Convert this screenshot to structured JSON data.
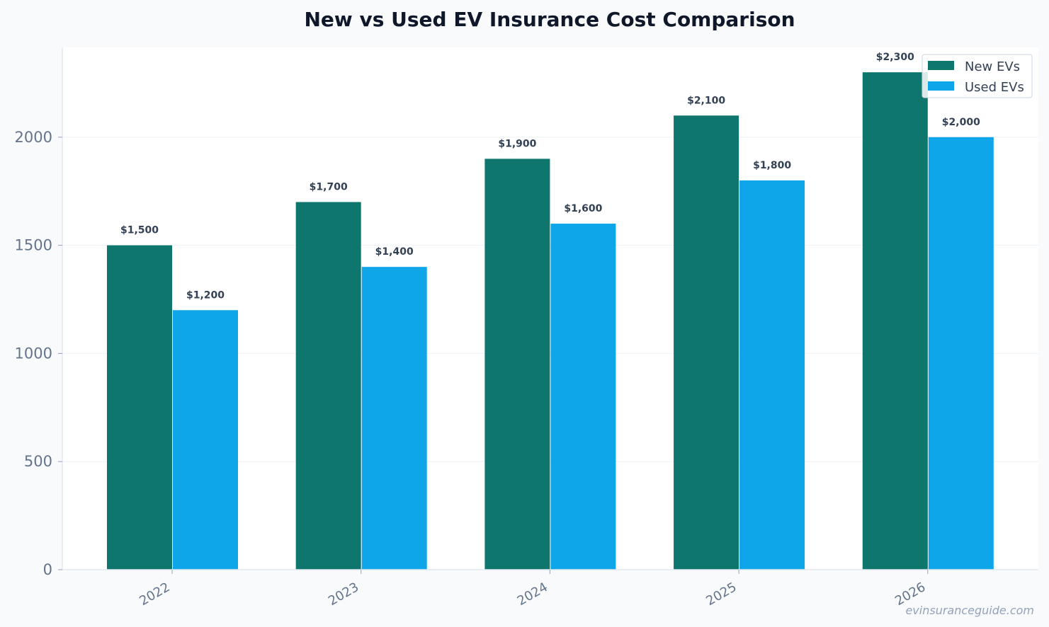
{
  "chart_data": {
    "type": "bar",
    "title": "New vs Used EV Insurance Cost Comparison",
    "xlabel": "",
    "ylabel": "",
    "categories": [
      "2022",
      "2023",
      "2024",
      "2025",
      "2026"
    ],
    "series": [
      {
        "name": "New EVs",
        "color": "#0f766e",
        "values": [
          1500,
          1700,
          1900,
          2100,
          2300
        ],
        "labels": [
          "$1,500",
          "$1,700",
          "$1,900",
          "$2,100",
          "$2,300"
        ]
      },
      {
        "name": "Used EVs",
        "color": "#0ea5e9",
        "values": [
          1200,
          1400,
          1600,
          1800,
          2000
        ],
        "labels": [
          "$1,200",
          "$1,400",
          "$1,600",
          "$1,800",
          "$2,000"
        ]
      }
    ],
    "yticks": [
      "0",
      "500",
      "1000",
      "1500",
      "2000"
    ],
    "ytick_values": [
      0,
      500,
      1000,
      1500,
      2000
    ],
    "ylim": [
      0,
      2415
    ],
    "grid": true,
    "legend_position": "top-right",
    "watermark": "evinsuranceguide.com"
  }
}
